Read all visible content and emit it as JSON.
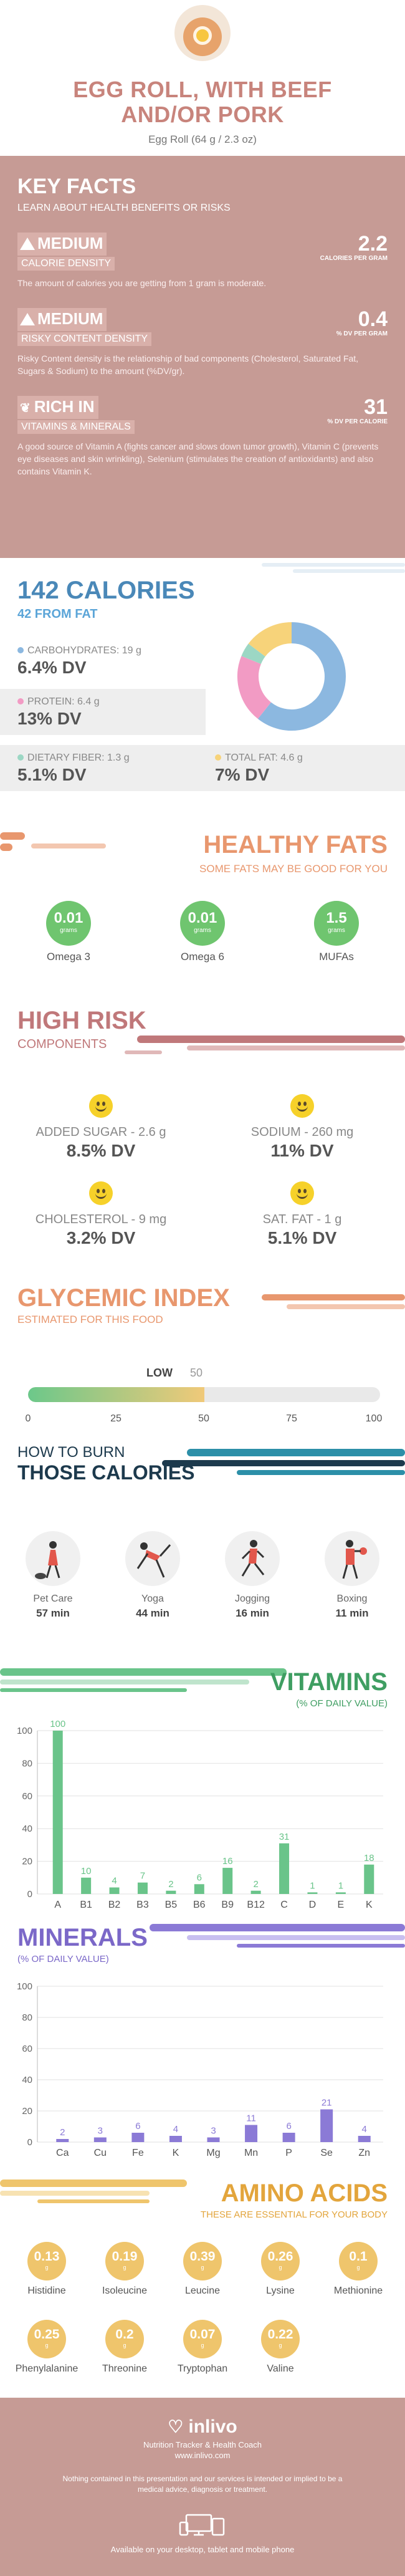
{
  "header": {
    "title_line1": "EGG ROLL, WITH BEEF",
    "title_line2": "AND/OR PORK",
    "subtitle": "Egg Roll (64 g / 2.3 oz)"
  },
  "key_facts": {
    "title": "KEY FACTS",
    "subtitle": "LEARN ABOUT HEALTH BENEFITS OR RISKS",
    "facts": [
      {
        "level": "MEDIUM",
        "category": "CALORIE DENSITY",
        "value": "2.2",
        "unit": "CALORIES PER GRAM",
        "description": "The amount of calories you are getting from 1 gram is moderate."
      },
      {
        "level": "MEDIUM",
        "category": "RISKY CONTENT DENSITY",
        "value": "0.4",
        "unit": "% DV PER GRAM",
        "description": "Risky Content density is the relationship of bad components (Cholesterol, Saturated Fat, Sugars & Sodium) to the amount (%DV/gr)."
      },
      {
        "level": "RICH IN",
        "category": "VITAMINS & MINERALS",
        "value": "31",
        "unit": "% DV PER CALORIE",
        "description": "A good source of Vitamin A (fights cancer and slows down tumor growth), Vitamin C (prevents eye diseases and skin wrinkling), Selenium (stimulates the creation of antioxidants) and also contains Vitamin K."
      }
    ]
  },
  "calories": {
    "title": "142 CALORIES",
    "subtitle": "42 FROM FAT",
    "macros": [
      {
        "label": "CARBOHYDRATES: 19 g",
        "dv": "6.4% DV",
        "color": "#8cb8e0"
      },
      {
        "label": "PROTEIN: 6.4 g",
        "dv": "13% DV",
        "color": "#f29bc4"
      },
      {
        "label": "DIETARY FIBER: 1.3 g",
        "dv": "5.1% DV",
        "color": "#9cd7c4"
      },
      {
        "label": "TOTAL FAT: 4.6 g",
        "dv": "7% DV",
        "color": "#f7d37a"
      }
    ],
    "donut": [
      {
        "name": "carbohydrates",
        "value": 19,
        "color": "#8cb8e0"
      },
      {
        "name": "protein",
        "value": 6.4,
        "color": "#f29bc4"
      },
      {
        "name": "fiber",
        "value": 1.3,
        "color": "#9cd7c4"
      },
      {
        "name": "fat",
        "value": 4.6,
        "color": "#f7d37a"
      }
    ]
  },
  "healthy_fats": {
    "title": "HEALTHY FATS",
    "subtitle": "SOME FATS MAY BE GOOD FOR YOU",
    "items": [
      {
        "value": "0.01",
        "unit": "grams",
        "label": "Omega 3"
      },
      {
        "value": "0.01",
        "unit": "grams",
        "label": "Omega 6"
      },
      {
        "value": "1.5",
        "unit": "grams",
        "label": "MUFAs"
      }
    ]
  },
  "high_risk": {
    "title": "HIGH RISK",
    "subtitle": "COMPONENTS",
    "items": [
      {
        "label": "ADDED SUGAR - 2.6 g",
        "dv": "8.5% DV"
      },
      {
        "label": "SODIUM - 260 mg",
        "dv": "11% DV"
      },
      {
        "label": "CHOLESTEROL - 9 mg",
        "dv": "3.2% DV"
      },
      {
        "label": "SAT. FAT - 1 g",
        "dv": "5.1% DV"
      }
    ]
  },
  "glycemic": {
    "title": "GLYCEMIC INDEX",
    "subtitle": "ESTIMATED FOR THIS FOOD",
    "level_label": "LOW",
    "value": "50",
    "fill_fraction": 0.5,
    "ticks": [
      "0",
      "25",
      "50",
      "75",
      "100"
    ]
  },
  "burn": {
    "title1": "HOW TO BURN",
    "title2": "THOSE CALORIES",
    "activities": [
      {
        "label": "Pet Care",
        "time": "57 min"
      },
      {
        "label": "Yoga",
        "time": "44 min"
      },
      {
        "label": "Jogging",
        "time": "16 min"
      },
      {
        "label": "Boxing",
        "time": "11 min"
      }
    ]
  },
  "vitamins": {
    "title": "VITAMINS",
    "subtitle": "(% OF DAILY VALUE)",
    "color": "#6ac48a",
    "y_ticks": [
      "0",
      "20",
      "40",
      "60",
      "80",
      "100"
    ]
  },
  "minerals": {
    "title": "MINERALS",
    "subtitle": "(% OF DAILY VALUE)",
    "color": "#8b7ad6",
    "y_ticks": [
      "0",
      "20",
      "40",
      "60",
      "80",
      "100"
    ]
  },
  "chart_data": [
    {
      "type": "bar",
      "title": "VITAMINS",
      "categories": [
        "A",
        "B1",
        "B2",
        "B3",
        "B5",
        "B6",
        "B9",
        "B12",
        "C",
        "D",
        "E",
        "K"
      ],
      "values": [
        100,
        10,
        4,
        7,
        2,
        6,
        16,
        2,
        31,
        1,
        1,
        18
      ],
      "ylim": [
        0,
        100
      ]
    },
    {
      "type": "bar",
      "title": "MINERALS",
      "categories": [
        "Ca",
        "Cu",
        "Fe",
        "K",
        "Mg",
        "Mn",
        "P",
        "Se",
        "Zn"
      ],
      "values": [
        2,
        3,
        6,
        4,
        3,
        11,
        6,
        21,
        4
      ],
      "ylim": [
        0,
        100
      ]
    }
  ],
  "amino": {
    "title": "AMINO ACIDS",
    "subtitle": "THESE ARE ESSENTIAL FOR YOUR BODY",
    "items": [
      {
        "value": "0.13",
        "unit": "g",
        "label": "Histidine"
      },
      {
        "value": "0.19",
        "unit": "g",
        "label": "Isoleucine"
      },
      {
        "value": "0.39",
        "unit": "g",
        "label": "Leucine"
      },
      {
        "value": "0.26",
        "unit": "g",
        "label": "Lysine"
      },
      {
        "value": "0.1",
        "unit": "g",
        "label": "Methionine"
      },
      {
        "value": "0.25",
        "unit": "g",
        "label": "Phenylalanine"
      },
      {
        "value": "0.2",
        "unit": "g",
        "label": "Threonine"
      },
      {
        "value": "0.07",
        "unit": "g",
        "label": "Tryptophan"
      },
      {
        "value": "0.22",
        "unit": "g",
        "label": "Valine"
      }
    ]
  },
  "footer": {
    "brand": "inlivo",
    "tagline": "Nutrition Tracker & Health Coach",
    "url": "www.inlivo.com",
    "disclaimer": "Nothing contained in this presentation and our services is intended or implied to be a medical advice, diagnosis or treatment.",
    "availability": "Available on your desktop, tablet and mobile phone"
  }
}
